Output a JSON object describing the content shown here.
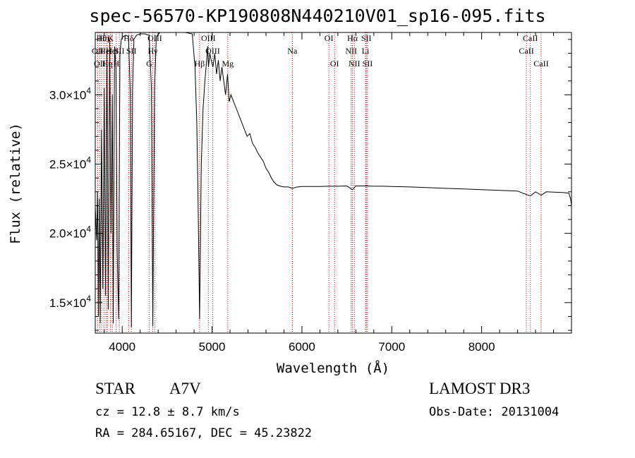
{
  "title": "spec-56570-KP190808N440210V01_sp16-095.fits",
  "chart_data": {
    "type": "line",
    "title": "spec-56570-KP190808N440210V01_sp16-095.fits",
    "xlabel": "Wavelength (Å)",
    "ylabel": "Flux (relative)",
    "xlim": [
      3700,
      9000
    ],
    "ylim": [
      12800,
      34500
    ],
    "x_ticks": [
      4000,
      5000,
      6000,
      7000,
      8000
    ],
    "x_tick_labels": [
      "4000",
      "5000",
      "6000",
      "7000",
      "8000"
    ],
    "y_ticks": [
      15000,
      20000,
      25000,
      30000
    ],
    "y_tick_labels": [
      {
        "mantissa": "1.5×10",
        "exp": "4"
      },
      {
        "mantissa": "2.0×10",
        "exp": "4"
      },
      {
        "mantissa": "2.5×10",
        "exp": "4"
      },
      {
        "mantissa": "3.0×10",
        "exp": "4"
      }
    ],
    "grid": false,
    "series": [
      {
        "values": [
          [
            3700,
            22000
          ],
          [
            3715,
            19500
          ],
          [
            3725,
            23000
          ],
          [
            3735,
            14000
          ],
          [
            3745,
            22500
          ],
          [
            3755,
            13500
          ],
          [
            3770,
            27500
          ],
          [
            3785,
            16000
          ],
          [
            3800,
            30500
          ],
          [
            3815,
            15500
          ],
          [
            3830,
            33000
          ],
          [
            3845,
            14500
          ],
          [
            3860,
            34000
          ],
          [
            3875,
            20000
          ],
          [
            3890,
            30000
          ],
          [
            3900,
            13500
          ],
          [
            3915,
            33500
          ],
          [
            3930,
            32000
          ],
          [
            3945,
            18500
          ],
          [
            3960,
            13800
          ],
          [
            3975,
            33000
          ],
          [
            3990,
            34000
          ],
          [
            4010,
            34200
          ],
          [
            4040,
            34300
          ],
          [
            4070,
            34200
          ],
          [
            4090,
            30000
          ],
          [
            4102,
            13200
          ],
          [
            4115,
            30500
          ],
          [
            4130,
            34000
          ],
          [
            4160,
            34300
          ],
          [
            4200,
            34400
          ],
          [
            4250,
            34400
          ],
          [
            4300,
            34300
          ],
          [
            4325,
            30500
          ],
          [
            4335,
            19000
          ],
          [
            4341,
            13300
          ],
          [
            4348,
            20000
          ],
          [
            4360,
            30500
          ],
          [
            4380,
            34200
          ],
          [
            4420,
            34500
          ],
          [
            4500,
            34500
          ],
          [
            4600,
            34500
          ],
          [
            4700,
            34500
          ],
          [
            4780,
            34400
          ],
          [
            4810,
            32000
          ],
          [
            4830,
            28000
          ],
          [
            4845,
            22000
          ],
          [
            4855,
            17000
          ],
          [
            4861,
            13800
          ],
          [
            4868,
            18000
          ],
          [
            4880,
            25000
          ],
          [
            4900,
            29000
          ],
          [
            4920,
            31000
          ],
          [
            4940,
            32500
          ],
          [
            4950,
            33500
          ],
          [
            4960,
            32000
          ],
          [
            4975,
            33000
          ],
          [
            4990,
            32500
          ],
          [
            5010,
            32000
          ],
          [
            5030,
            33000
          ],
          [
            5050,
            31500
          ],
          [
            5070,
            32500
          ],
          [
            5090,
            31000
          ],
          [
            5110,
            32000
          ],
          [
            5130,
            31000
          ],
          [
            5150,
            30000
          ],
          [
            5172,
            31500
          ],
          [
            5190,
            29500
          ],
          [
            5210,
            30000
          ],
          [
            5240,
            29500
          ],
          [
            5270,
            29000
          ],
          [
            5300,
            28500
          ],
          [
            5330,
            28000
          ],
          [
            5360,
            27500
          ],
          [
            5390,
            27000
          ],
          [
            5420,
            27200
          ],
          [
            5450,
            26500
          ],
          [
            5480,
            26200
          ],
          [
            5510,
            25800
          ],
          [
            5540,
            25500
          ],
          [
            5570,
            25200
          ],
          [
            5600,
            24700
          ],
          [
            5630,
            24400
          ],
          [
            5660,
            24000
          ],
          [
            5690,
            23700
          ],
          [
            5720,
            23500
          ],
          [
            5760,
            23400
          ],
          [
            5800,
            23350
          ],
          [
            5850,
            23350
          ],
          [
            5890,
            23250
          ],
          [
            5950,
            23350
          ],
          [
            6000,
            23380
          ],
          [
            6100,
            23380
          ],
          [
            6200,
            23380
          ],
          [
            6300,
            23400
          ],
          [
            6400,
            23400
          ],
          [
            6500,
            23420
          ],
          [
            6563,
            23150
          ],
          [
            6600,
            23420
          ],
          [
            6700,
            23420
          ],
          [
            6800,
            23400
          ],
          [
            6900,
            23400
          ],
          [
            7000,
            23380
          ],
          [
            7200,
            23350
          ],
          [
            7400,
            23300
          ],
          [
            7600,
            23250
          ],
          [
            7800,
            23200
          ],
          [
            8000,
            23150
          ],
          [
            8200,
            23100
          ],
          [
            8400,
            23050
          ],
          [
            8498,
            22800
          ],
          [
            8542,
            22700
          ],
          [
            8600,
            23000
          ],
          [
            8662,
            22750
          ],
          [
            8720,
            23000
          ],
          [
            8800,
            22980
          ],
          [
            8900,
            22950
          ],
          [
            8970,
            22900
          ],
          [
            8990,
            22500
          ],
          [
            9000,
            22000
          ]
        ]
      }
    ],
    "line_markers": [
      {
        "x": 3727,
        "label": "OII",
        "row": 2
      },
      {
        "x": 3750,
        "label": "OII",
        "row": 3
      },
      {
        "x": 3770,
        "label": "Hθ",
        "row": 1
      },
      {
        "x": 3797,
        "label": "Hη",
        "row": 1
      },
      {
        "x": 3820,
        "label": "HeI",
        "row": 2
      },
      {
        "x": 3835,
        "label": "Hη",
        "row": 3
      },
      {
        "x": 3869,
        "label": "K",
        "row": 1
      },
      {
        "x": 3889,
        "label": "HeI",
        "row": 2
      },
      {
        "x": 3934,
        "label": "H",
        "row": 3
      },
      {
        "x": 3968,
        "label": "SII",
        "row": 2
      },
      {
        "x": 4072,
        "label": "Hδ",
        "row": 1
      },
      {
        "x": 4102,
        "label": "SII",
        "row": 2
      },
      {
        "x": 4300,
        "label": "G",
        "row": 3
      },
      {
        "x": 4340,
        "label": "Hγ",
        "row": 2
      },
      {
        "x": 4363,
        "label": "OIII",
        "row": 1
      },
      {
        "x": 4861,
        "label": "Hβ",
        "row": 3
      },
      {
        "x": 4959,
        "label": "OIII",
        "row": 1
      },
      {
        "x": 5007,
        "label": "OIII",
        "row": 2
      },
      {
        "x": 5175,
        "label": "Mg",
        "row": 3
      },
      {
        "x": 5893,
        "label": "Na",
        "row": 2
      },
      {
        "x": 6300,
        "label": "OI",
        "row": 1
      },
      {
        "x": 6363,
        "label": "OI",
        "row": 3
      },
      {
        "x": 6548,
        "label": "NII",
        "row": 2
      },
      {
        "x": 6563,
        "label": "Hα",
        "row": 1
      },
      {
        "x": 6583,
        "label": "NII",
        "row": 3
      },
      {
        "x": 6707,
        "label": "Li",
        "row": 2
      },
      {
        "x": 6716,
        "label": "SII",
        "row": 1
      },
      {
        "x": 6730,
        "label": "SII",
        "row": 3
      },
      {
        "x": 8498,
        "label": "CaII",
        "row": 2
      },
      {
        "x": 8542,
        "label": "CaII",
        "row": 1
      },
      {
        "x": 8662,
        "label": "CaII",
        "row": 3
      }
    ]
  },
  "info": {
    "class": "STAR",
    "subclass": "A7V",
    "survey": "LAMOST DR3",
    "cz": "cz = 12.8 ± 8.7 km/s",
    "obs_date": "Obs-Date: 20131004",
    "coords": "RA = 284.65167, DEC =  45.23822"
  },
  "colors": {
    "line": "#000000",
    "marker": "#cc0000",
    "axes": "#000000"
  }
}
